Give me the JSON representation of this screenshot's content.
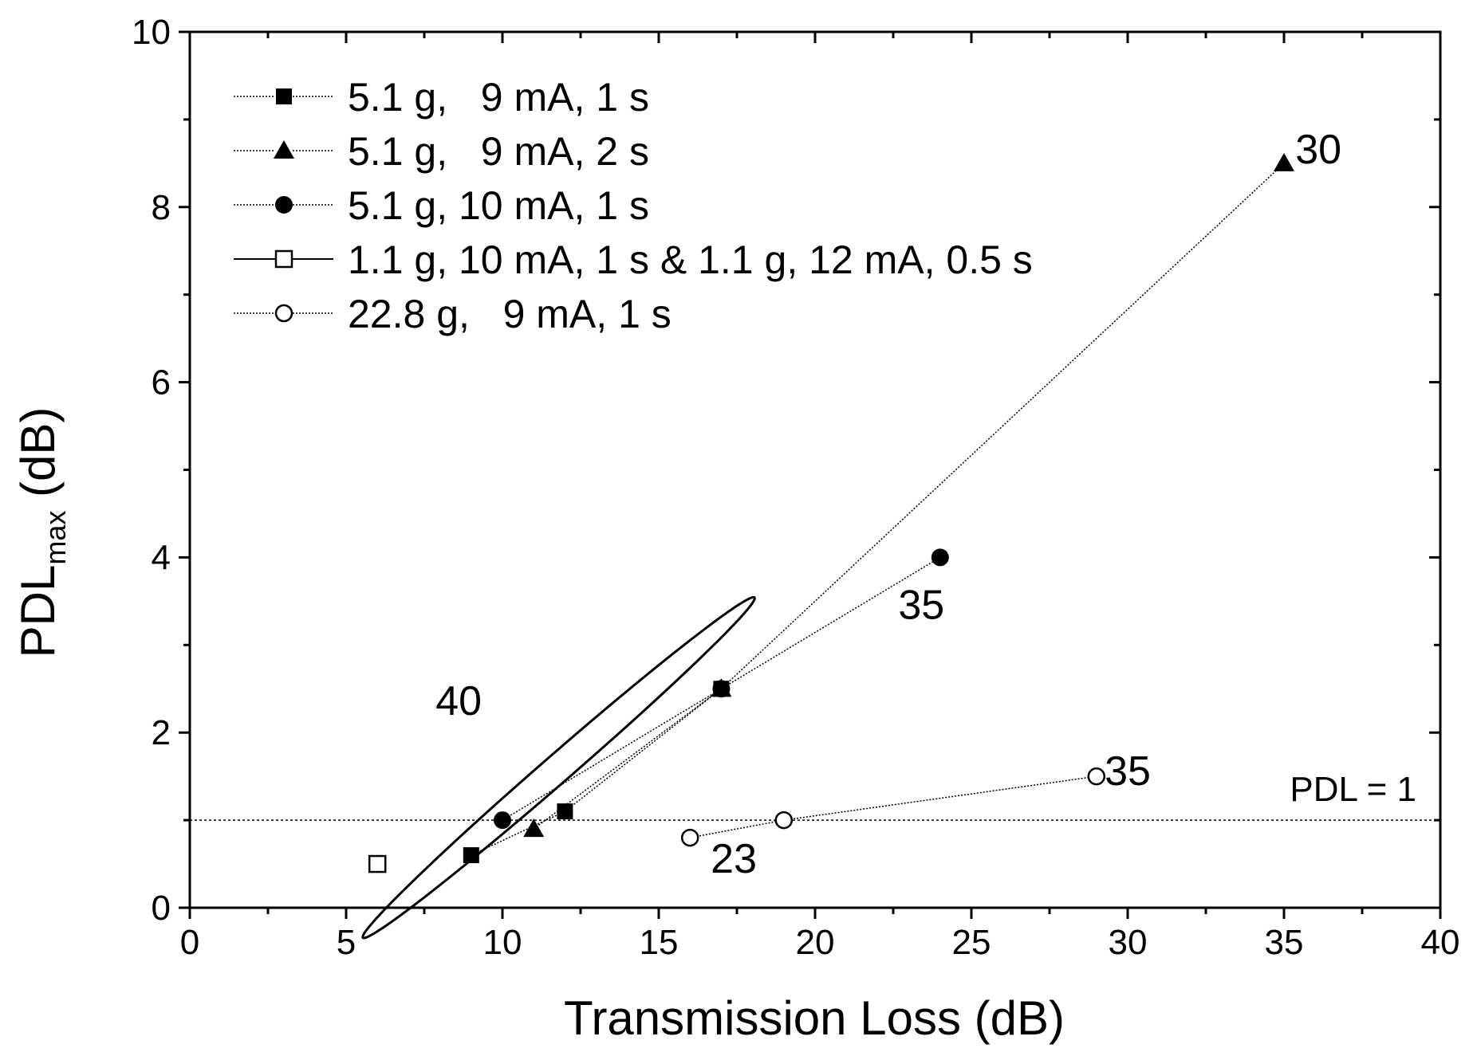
{
  "chart_data": {
    "type": "scatter",
    "title": "",
    "xlabel": "Transmission Loss (dB)",
    "ylabel": {
      "base": "PDL",
      "subscript": "max",
      "suffix": " (dB)"
    },
    "xlim": [
      0,
      40
    ],
    "ylim": [
      0,
      10
    ],
    "xticks": [
      0,
      5,
      10,
      15,
      20,
      25,
      30,
      35,
      40
    ],
    "yticks": [
      0,
      2,
      4,
      6,
      8,
      10
    ],
    "grid": false,
    "legend_position": "top-left",
    "series": [
      {
        "name": "5.1 g,   9 mA, 1 s",
        "marker": "square-filled",
        "line": "dotted",
        "points": [
          [
            9,
            0.6
          ],
          [
            12,
            1.1
          ],
          [
            17,
            2.5
          ]
        ]
      },
      {
        "name": "5.1 g,   9 mA, 2 s",
        "marker": "triangle-filled",
        "line": "dotted",
        "points": [
          [
            11,
            0.9
          ],
          [
            17,
            2.5
          ],
          [
            35,
            8.5
          ]
        ]
      },
      {
        "name": "5.1 g, 10 mA, 1 s",
        "marker": "circle-filled",
        "line": "dotted",
        "points": [
          [
            10,
            1.0
          ],
          [
            17,
            2.5
          ],
          [
            24,
            4.0
          ]
        ]
      },
      {
        "name": "1.1 g, 10 mA, 1 s & 1.1 g, 12 mA, 0.5 s",
        "marker": "square-open",
        "line": "solid",
        "points": [
          [
            6,
            0.5
          ]
        ]
      },
      {
        "name": "22.8 g,   9 mA, 1 s",
        "marker": "circle-open",
        "line": "dotted",
        "points": [
          [
            16,
            0.8
          ],
          [
            19,
            1.0
          ],
          [
            29,
            1.5
          ]
        ]
      }
    ],
    "reference_line": {
      "y": 1,
      "label": "PDL = 1"
    },
    "annotations": [
      {
        "text": "30",
        "x": 36.1,
        "y": 8.5
      },
      {
        "text": "35",
        "x": 23.4,
        "y": 3.3
      },
      {
        "text": "40",
        "x": 8.6,
        "y": 2.2
      },
      {
        "text": "35",
        "x": 30.0,
        "y": 1.4
      },
      {
        "text": "23",
        "x": 17.4,
        "y": 0.4
      }
    ],
    "ellipse": {
      "cx": 11.8,
      "cy": 1.6,
      "rx": 8.3,
      "ry": 0.45,
      "angle_deg": -41
    }
  }
}
